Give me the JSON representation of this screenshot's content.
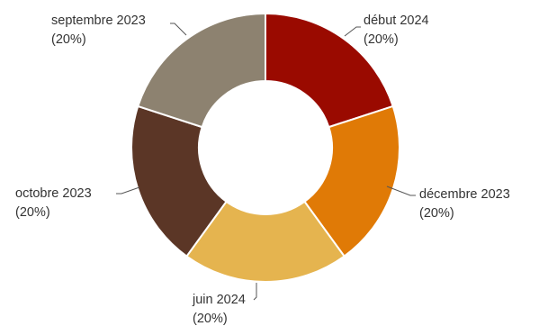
{
  "chart_data": {
    "type": "pie",
    "donut": true,
    "legend": "none",
    "slices": [
      {
        "name": "début 2024",
        "value": 20,
        "percent_label": "(20%)",
        "color": "#9a0a00"
      },
      {
        "name": "décembre 2023",
        "value": 20,
        "percent_label": "(20%)",
        "color": "#e07a06"
      },
      {
        "name": "juin 2024",
        "value": 20,
        "percent_label": "(20%)",
        "color": "#e5b44f"
      },
      {
        "name": "octobre 2023",
        "value": 20,
        "percent_label": "(20%)",
        "color": "#5b3626"
      },
      {
        "name": "septembre 2023",
        "value": 20,
        "percent_label": "(20%)",
        "color": "#8d8270"
      }
    ]
  }
}
